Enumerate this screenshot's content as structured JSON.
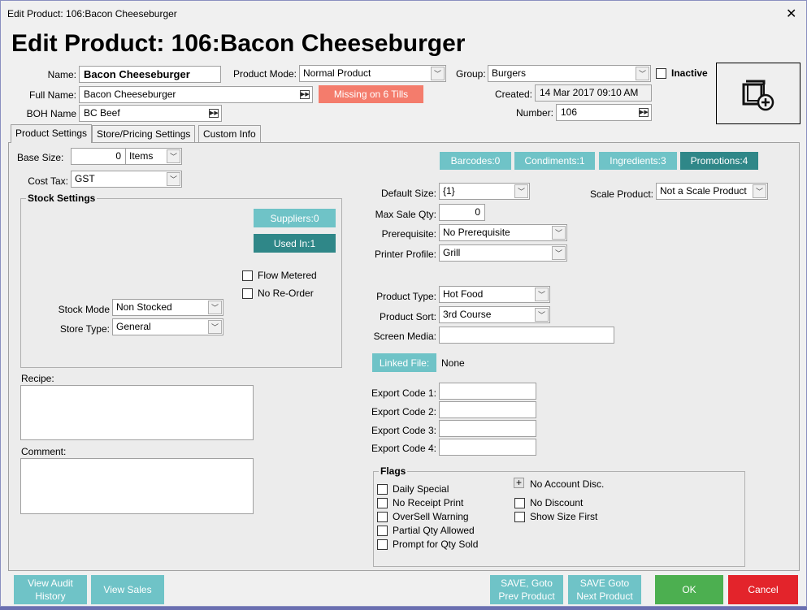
{
  "window": {
    "title": "Edit Product: 106:Bacon Cheeseburger",
    "close": "✕"
  },
  "heading": "Edit Product: 106:Bacon Cheeseburger",
  "header": {
    "name_label": "Name:",
    "name_value": "Bacon Cheeseburger",
    "full_name_label": "Full Name:",
    "full_name_value": "Bacon Cheeseburger",
    "boh_label": "BOH Name",
    "boh_value": "BC Beef",
    "mode_label": "Product Mode:",
    "mode_value": "Normal Product",
    "missing_button": "Missing on 6 Tills",
    "group_label": "Group:",
    "group_value": "Burgers",
    "inactive_label": "Inactive",
    "created_label": "Created:",
    "created_value": "14 Mar 2017 09:10 AM",
    "number_label": "Number:",
    "number_value": "106",
    "image_icon": "add-image-icon"
  },
  "tabs": [
    {
      "label": "Product Settings",
      "active": true
    },
    {
      "label": "Store/Pricing Settings"
    },
    {
      "label": "Custom Info"
    }
  ],
  "left": {
    "base_size_label": "Base Size:",
    "base_size_value": "0",
    "base_unit": "Items",
    "cost_tax_label": "Cost Tax:",
    "cost_tax_value": "GST",
    "stock_title": "Stock Settings",
    "suppliers": "Suppliers:0",
    "used_in": "Used In:1",
    "flow_metered": "Flow Metered",
    "no_reorder": "No Re-Order",
    "stock_mode_label": "Stock Mode",
    "stock_mode_value": "Non Stocked",
    "store_type_label": "Store Type:",
    "store_type_value": "General",
    "recipe_label": "Recipe:",
    "comment_label": "Comment:"
  },
  "tags": [
    "Barcodes:0",
    "Condiments:1",
    "Ingredients:3",
    "Promotions:4"
  ],
  "right": {
    "default_size_label": "Default Size:",
    "default_size_value": "{1}",
    "scale_label": "Scale Product:",
    "scale_value": "Not a Scale Product",
    "max_sale_label": "Max Sale Qty:",
    "max_sale_value": "0",
    "prereq_label": "Prerequisite:",
    "prereq_value": "No Prerequisite",
    "printer_label": "Printer Profile:",
    "printer_value": "Grill",
    "type_label": "Product Type:",
    "type_value": "Hot Food",
    "sort_label": "Product Sort:",
    "sort_value": "3rd Course",
    "media_label": "Screen Media:",
    "media_value": "",
    "linked_button": "Linked File:",
    "linked_value": "None",
    "export_labels": [
      "Export Code 1:",
      "Export Code 2:",
      "Export Code 3:",
      "Export Code 4:"
    ]
  },
  "flags": {
    "title": "Flags",
    "left": [
      "Daily Special",
      "No Receipt Print",
      "OverSell Warning",
      "Partial Qty Allowed",
      "Prompt for Qty Sold"
    ],
    "no_account": "No Account Disc.",
    "right": [
      "No Discount",
      "Show Size First"
    ]
  },
  "footer": {
    "audit": "View Audit History",
    "sales": "View Sales",
    "prev": "SAVE, Goto Prev Product",
    "next": "SAVE Goto Next Product",
    "ok": "OK",
    "cancel": "Cancel"
  },
  "colors": {
    "light_teal": "#6fc3c7",
    "dark_teal": "#2f8788",
    "missing": "#f47c6c",
    "ok": "#4caf50",
    "cancel": "#e3242b"
  }
}
